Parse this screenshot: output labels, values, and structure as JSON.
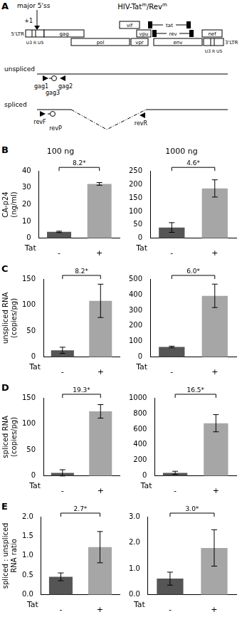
{
  "diagram": {
    "label": "A",
    "title_parts": [
      {
        "text": "HIV-Tat"
      },
      {
        "text": "m",
        "sup": true
      },
      {
        "text": "/Rev"
      },
      {
        "text": "m",
        "sup": true
      }
    ],
    "splice_site": "major 5'ss",
    "start": "+1",
    "ltr_left": "5'LTR",
    "ltr_left_regions": "U3 R U5",
    "ltr_right": "3'LTR",
    "ltr_right_regions": "U3 R U5",
    "genes": [
      "gag",
      "pol",
      "vif",
      "vpr",
      "vpu",
      "tat",
      "rev",
      "env",
      "nef"
    ],
    "transcripts": [
      "unspliced",
      "spliced"
    ],
    "primers": [
      "gag1",
      "gag3",
      "gag2",
      "revF",
      "revP",
      "revR"
    ]
  },
  "chart_data": [
    {
      "type": "bar",
      "panel": "B",
      "title": "100 ng",
      "ylabel": [
        "CA-p24",
        "(ng/ml)"
      ],
      "xlabel": "Tat",
      "categories": [
        "-",
        "+"
      ],
      "values": [
        3.8,
        32.3
      ],
      "errors": [
        0.4,
        0.8
      ],
      "colors": [
        "#555555",
        "#a6a6a6"
      ],
      "ylim": [
        0,
        40
      ],
      "yticks": [
        0,
        10,
        20,
        30,
        40
      ],
      "grid": false,
      "annotation": "8.2*"
    },
    {
      "type": "bar",
      "title": "1000 ng",
      "xlabel": "Tat",
      "categories": [
        "-",
        "+"
      ],
      "values": [
        40,
        185
      ],
      "errors": [
        18,
        32
      ],
      "colors": [
        "#555555",
        "#a6a6a6"
      ],
      "ylim": [
        0,
        250
      ],
      "yticks": [
        0,
        50,
        100,
        150,
        200,
        250
      ],
      "grid": false,
      "annotation": "4.6*"
    },
    {
      "type": "bar",
      "panel": "C",
      "ylabel": [
        "unspliced RNA",
        "(copies/pg)"
      ],
      "xlabel": "Tat",
      "categories": [
        "-",
        "+"
      ],
      "values": [
        13,
        108
      ],
      "errors": [
        6,
        32
      ],
      "colors": [
        "#555555",
        "#a6a6a6"
      ],
      "ylim": [
        0,
        150
      ],
      "yticks": [
        0,
        50,
        100,
        150
      ],
      "grid": false,
      "annotation": "8.2*"
    },
    {
      "type": "bar",
      "xlabel": "Tat",
      "categories": [
        "-",
        "+"
      ],
      "values": [
        65,
        392
      ],
      "errors": [
        5,
        75
      ],
      "colors": [
        "#555555",
        "#a6a6a6"
      ],
      "ylim": [
        0,
        500
      ],
      "yticks": [
        0,
        100,
        200,
        300,
        400,
        500
      ],
      "grid": false,
      "annotation": "6.0*"
    },
    {
      "type": "bar",
      "panel": "D",
      "ylabel": [
        "spliced RNA",
        "(copies/pg)"
      ],
      "xlabel": "Tat",
      "categories": [
        "-",
        "+"
      ],
      "values": [
        6,
        124
      ],
      "errors": [
        6,
        13
      ],
      "colors": [
        "#555555",
        "#a6a6a6"
      ],
      "ylim": [
        0,
        150
      ],
      "yticks": [
        0,
        50,
        100,
        150
      ],
      "grid": false,
      "annotation": "19.3*"
    },
    {
      "type": "bar",
      "xlabel": "Tat",
      "categories": [
        "-",
        "+"
      ],
      "values": [
        40,
        675
      ],
      "errors": [
        20,
        110
      ],
      "colors": [
        "#555555",
        "#a6a6a6"
      ],
      "ylim": [
        0,
        1000
      ],
      "yticks": [
        0,
        200,
        400,
        600,
        800,
        1000
      ],
      "grid": false,
      "annotation": "16.5*"
    },
    {
      "type": "bar",
      "panel": "E",
      "ylabel": [
        "spliced : unspliced",
        "RNA ratio"
      ],
      "xlabel": "Tat",
      "categories": [
        "-",
        "+"
      ],
      "values": [
        0.46,
        1.22
      ],
      "errors": [
        0.1,
        0.4
      ],
      "colors": [
        "#555555",
        "#a6a6a6"
      ],
      "ylim": [
        0,
        2
      ],
      "yticks": [
        {
          "value": 0,
          "label": "0.0"
        },
        {
          "value": 0.5,
          "label": "0.5"
        },
        {
          "value": 1,
          "label": "1.0"
        },
        {
          "value": 1.5,
          "label": "1.5"
        },
        {
          "value": 2,
          "label": "2.0"
        }
      ],
      "grid": false,
      "annotation": "2.7*"
    },
    {
      "type": "bar",
      "xlabel": "Tat",
      "categories": [
        "-",
        "+"
      ],
      "values": [
        0.62,
        1.8
      ],
      "errors": [
        0.25,
        0.7
      ],
      "colors": [
        "#555555",
        "#a6a6a6"
      ],
      "ylim": [
        0,
        3
      ],
      "yticks": [
        {
          "value": 0,
          "label": "0.0"
        },
        {
          "value": 1,
          "label": "1.0"
        },
        {
          "value": 2,
          "label": "2.0"
        },
        {
          "value": 3,
          "label": "3.0"
        }
      ],
      "grid": false,
      "annotation": "3.0*"
    }
  ]
}
